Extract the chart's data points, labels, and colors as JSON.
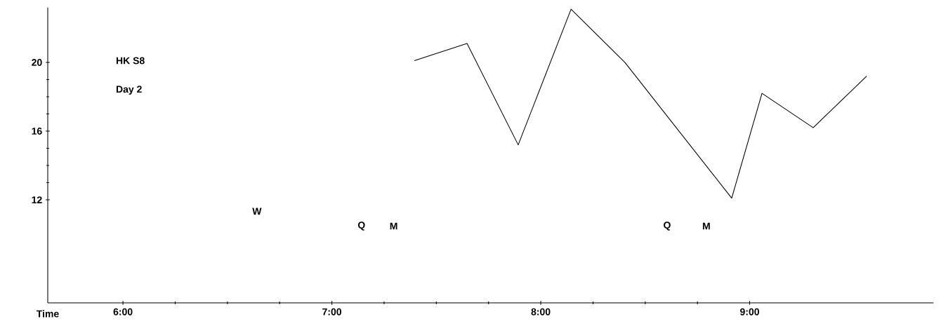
{
  "chart_data": {
    "type": "line",
    "xlabel": "Time",
    "x": [
      7.395,
      7.647,
      7.892,
      8.145,
      8.403,
      8.914,
      9.059,
      9.304,
      9.56
    ],
    "series": [
      {
        "color": "#000000",
        "values": [
          20.1,
          21.1,
          15.2,
          23.1,
          20.0,
          12.1,
          18.2,
          16.2,
          19.2
        ]
      }
    ],
    "xlim": [
      5.64,
      9.88
    ],
    "ylim": [
      6,
      23.2
    ],
    "xticks": [
      {
        "value": 6,
        "label": "6:00"
      },
      {
        "value": 7,
        "label": "7:00"
      },
      {
        "value": 8,
        "label": "8:00"
      },
      {
        "value": 9,
        "label": "9:00"
      }
    ],
    "yticks": [
      12,
      16,
      20
    ],
    "annotations": [
      "HK    S8",
      "Day 2",
      "W",
      "Q",
      "M",
      "Q",
      "M"
    ],
    "grid": false,
    "marker": "none",
    "line_style": "solid"
  }
}
